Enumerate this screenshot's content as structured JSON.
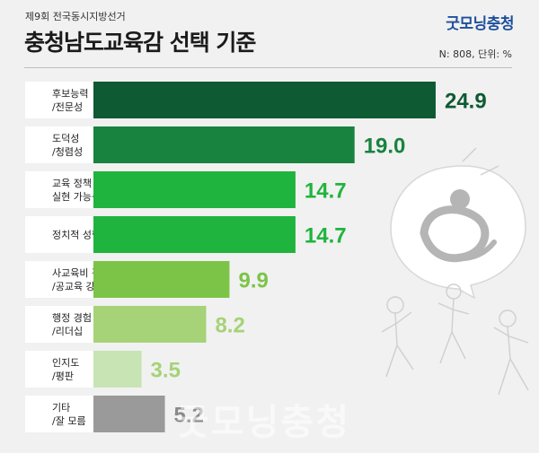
{
  "header": {
    "subtitle": "제9회 전국동시지방선거",
    "title": "충청남도교육감 선택 기준",
    "brand": "굿모닝충청",
    "meta": "N: 808, 단위: %"
  },
  "watermark": "굿모닝충청",
  "decor": {
    "icon": "speech-bubble-logo-and-running-people-illustration"
  },
  "colors": {
    "dark_green": "#0e5a33",
    "mid_green": "#18833f",
    "green": "#1fb43d",
    "light_green": "#7cc447",
    "pale_green": "#a6d278",
    "very_pale_green": "#c8e3b4",
    "gray": "#9a9a9a"
  },
  "chart_data": {
    "type": "bar",
    "orientation": "horizontal",
    "categories": [
      [
        "후보능력",
        "/전문성"
      ],
      [
        "도덕성",
        "/청렴성"
      ],
      [
        "교육 정책",
        "실현 가능성"
      ],
      [
        "정치적 성향"
      ],
      [
        "사교육비 감소",
        "/공교육 강화"
      ],
      [
        "행정 경험",
        "/리더십"
      ],
      [
        "인지도",
        "/평판"
      ],
      [
        "기타",
        "/잘 모름"
      ]
    ],
    "values": [
      24.9,
      19.0,
      14.7,
      14.7,
      9.9,
      8.2,
      3.5,
      5.2
    ],
    "value_labels": [
      "24.9",
      "19.0",
      "14.7",
      "14.7",
      "9.9",
      "8.2",
      "3.5",
      "5.2"
    ],
    "bar_colors": [
      "#0e5a33",
      "#18833f",
      "#1fb43d",
      "#1fb43d",
      "#7cc447",
      "#a6d278",
      "#c8e3b4",
      "#9a9a9a"
    ],
    "label_colors": [
      "#0e5a33",
      "#18833f",
      "#1fb43d",
      "#1fb43d",
      "#7cc447",
      "#a6d278",
      "#a6d278",
      "#8a8a8a"
    ],
    "unit": "%"
  }
}
